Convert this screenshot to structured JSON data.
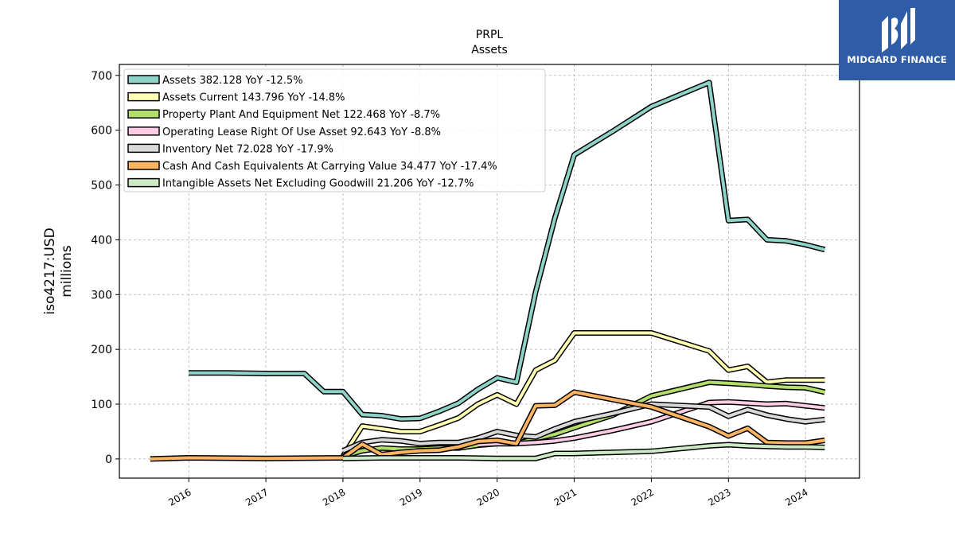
{
  "brand": {
    "name": "MIDGARD FINANCE",
    "bg_color": "#2e5ca6"
  },
  "chart_data": {
    "type": "line",
    "title": "PRPL",
    "subtitle": "Assets",
    "ylabel": [
      "iso4217:USD",
      "millions"
    ],
    "xlabel": "",
    "ylim": [
      -35,
      720
    ],
    "xlim": [
      2015.1,
      2024.7
    ],
    "yticks": [
      0,
      100,
      200,
      300,
      400,
      500,
      600,
      700
    ],
    "xticks": [
      "2016",
      "2017",
      "2018",
      "2019",
      "2020",
      "2021",
      "2022",
      "2023",
      "2024"
    ],
    "grid": true,
    "legend_position": "top-left",
    "series": [
      {
        "name": "Assets  382.128 YoY -12.5%",
        "color": "#8dd3c7",
        "points": [
          [
            2016.0,
            157
          ],
          [
            2016.5,
            157
          ],
          [
            2017.0,
            156
          ],
          [
            2017.5,
            156
          ],
          [
            2017.75,
            123
          ],
          [
            2018.0,
            123
          ],
          [
            2018.25,
            81
          ],
          [
            2018.5,
            79
          ],
          [
            2018.75,
            73
          ],
          [
            2019.0,
            74
          ],
          [
            2019.25,
            87
          ],
          [
            2019.5,
            102
          ],
          [
            2019.75,
            127
          ],
          [
            2020.0,
            148
          ],
          [
            2020.25,
            140
          ],
          [
            2020.5,
            305
          ],
          [
            2020.75,
            440
          ],
          [
            2021.0,
            555
          ],
          [
            2021.5,
            598
          ],
          [
            2022.0,
            643
          ],
          [
            2022.75,
            687
          ],
          [
            2023.0,
            435
          ],
          [
            2023.25,
            437
          ],
          [
            2023.5,
            400
          ],
          [
            2023.75,
            398
          ],
          [
            2024.0,
            391
          ],
          [
            2024.25,
            382
          ]
        ]
      },
      {
        "name": "Assets Current  143.796 YoY -14.8%",
        "color": "#ffffb3",
        "points": [
          [
            2018.0,
            5
          ],
          [
            2018.25,
            60
          ],
          [
            2018.5,
            55
          ],
          [
            2018.75,
            50
          ],
          [
            2019.0,
            50
          ],
          [
            2019.25,
            62
          ],
          [
            2019.5,
            75
          ],
          [
            2019.75,
            100
          ],
          [
            2020.0,
            117
          ],
          [
            2020.25,
            100
          ],
          [
            2020.5,
            162
          ],
          [
            2020.75,
            180
          ],
          [
            2021.0,
            230
          ],
          [
            2021.5,
            230
          ],
          [
            2022.0,
            230
          ],
          [
            2022.75,
            197
          ],
          [
            2023.0,
            162
          ],
          [
            2023.25,
            169
          ],
          [
            2023.5,
            140
          ],
          [
            2023.75,
            144
          ],
          [
            2024.0,
            144
          ],
          [
            2024.25,
            144
          ]
        ]
      },
      {
        "name": "Property Plant And Equipment Net  122.468 YoY -8.7%",
        "color": "#b3de69",
        "points": [
          [
            2018.0,
            5
          ],
          [
            2018.25,
            15
          ],
          [
            2018.5,
            20
          ],
          [
            2018.75,
            18
          ],
          [
            2019.0,
            18
          ],
          [
            2019.25,
            20
          ],
          [
            2019.5,
            20
          ],
          [
            2019.75,
            25
          ],
          [
            2020.0,
            28
          ],
          [
            2020.25,
            28
          ],
          [
            2020.5,
            37
          ],
          [
            2020.75,
            45
          ],
          [
            2021.0,
            57
          ],
          [
            2021.5,
            80
          ],
          [
            2022.0,
            115
          ],
          [
            2022.75,
            140
          ],
          [
            2023.0,
            138
          ],
          [
            2023.25,
            136
          ],
          [
            2023.5,
            133
          ],
          [
            2023.75,
            131
          ],
          [
            2024.0,
            130
          ],
          [
            2024.25,
            122
          ]
        ]
      },
      {
        "name": "Operating Lease Right Of Use Asset  92.643 YoY -8.8%",
        "color": "#fccde5",
        "points": [
          [
            2019.75,
            26
          ],
          [
            2020.0,
            28
          ],
          [
            2020.25,
            28
          ],
          [
            2020.5,
            30
          ],
          [
            2020.75,
            33
          ],
          [
            2021.0,
            38
          ],
          [
            2021.5,
            52
          ],
          [
            2022.0,
            68
          ],
          [
            2022.75,
            103
          ],
          [
            2023.0,
            104
          ],
          [
            2023.25,
            102
          ],
          [
            2023.5,
            100
          ],
          [
            2023.75,
            101
          ],
          [
            2024.0,
            97
          ],
          [
            2024.25,
            93
          ]
        ]
      },
      {
        "name": "Inventory Net  72.028 YoY -17.9%",
        "color": "#d9d9d9",
        "points": [
          [
            2018.0,
            15
          ],
          [
            2018.25,
            30
          ],
          [
            2018.5,
            35
          ],
          [
            2018.75,
            33
          ],
          [
            2019.0,
            28
          ],
          [
            2019.25,
            30
          ],
          [
            2019.5,
            30
          ],
          [
            2019.75,
            38
          ],
          [
            2020.0,
            50
          ],
          [
            2020.25,
            43
          ],
          [
            2020.5,
            40
          ],
          [
            2020.75,
            55
          ],
          [
            2021.0,
            68
          ],
          [
            2021.5,
            83
          ],
          [
            2022.0,
            100
          ],
          [
            2022.75,
            95
          ],
          [
            2023.0,
            78
          ],
          [
            2023.25,
            90
          ],
          [
            2023.5,
            80
          ],
          [
            2023.75,
            73
          ],
          [
            2024.0,
            68
          ],
          [
            2024.25,
            72
          ]
        ]
      },
      {
        "name": "Cash And Cash Equivalents At Carrying Value  34.477 YoY -17.4%",
        "color": "#fdb462",
        "points": [
          [
            2015.5,
            0
          ],
          [
            2016.0,
            2
          ],
          [
            2017.0,
            1
          ],
          [
            2018.0,
            2
          ],
          [
            2018.25,
            27
          ],
          [
            2018.5,
            8
          ],
          [
            2018.75,
            12
          ],
          [
            2019.0,
            15
          ],
          [
            2019.25,
            16
          ],
          [
            2019.5,
            22
          ],
          [
            2019.75,
            32
          ],
          [
            2020.0,
            34
          ],
          [
            2020.25,
            28
          ],
          [
            2020.5,
            97
          ],
          [
            2020.75,
            98
          ],
          [
            2021.0,
            122
          ],
          [
            2022.0,
            95
          ],
          [
            2022.75,
            59
          ],
          [
            2023.0,
            42
          ],
          [
            2023.25,
            56
          ],
          [
            2023.5,
            30
          ],
          [
            2023.75,
            29
          ],
          [
            2024.0,
            29
          ],
          [
            2024.25,
            34
          ]
        ]
      },
      {
        "name": "Intangible Assets Net Excluding Goodwill  21.206 YoY -12.7%",
        "color": "#ccebc5",
        "points": [
          [
            2018.0,
            1
          ],
          [
            2018.5,
            2
          ],
          [
            2019.0,
            2
          ],
          [
            2019.5,
            2
          ],
          [
            2020.0,
            1
          ],
          [
            2020.25,
            1
          ],
          [
            2020.5,
            1
          ],
          [
            2020.75,
            10
          ],
          [
            2021.0,
            10
          ],
          [
            2021.5,
            12
          ],
          [
            2022.0,
            14
          ],
          [
            2022.75,
            24
          ],
          [
            2023.0,
            26
          ],
          [
            2023.25,
            24
          ],
          [
            2023.5,
            23
          ],
          [
            2023.75,
            22
          ],
          [
            2024.0,
            22
          ],
          [
            2024.25,
            21
          ]
        ]
      }
    ]
  }
}
